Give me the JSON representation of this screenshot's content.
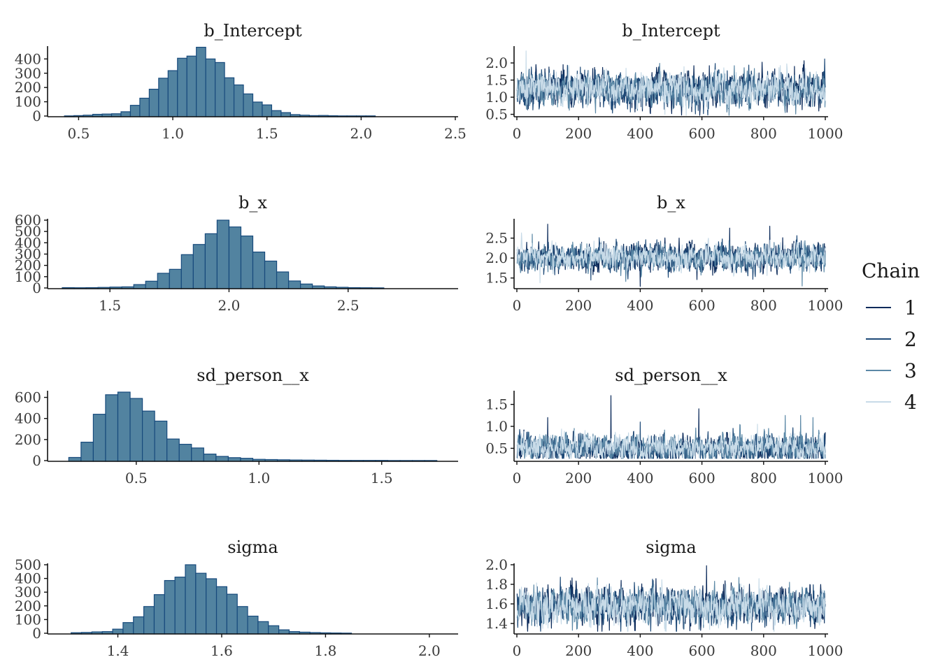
{
  "legend": {
    "title": "Chain",
    "items": [
      {
        "label": "1",
        "color": "#0b2a5a"
      },
      {
        "label": "2",
        "color": "#1e4a78"
      },
      {
        "label": "3",
        "color": "#5b88a6"
      },
      {
        "label": "4",
        "color": "#c8dbe8"
      }
    ]
  },
  "chart_data": [
    {
      "type": "bar",
      "title": "b_Intercept",
      "xlim": [
        0.35,
        2.5
      ],
      "ylim": [
        0,
        480
      ],
      "xticks": [
        "0.5",
        "1.0",
        "1.5",
        "2.0",
        "2.5"
      ],
      "yticks": [
        "0",
        "100",
        "200",
        "300",
        "400"
      ],
      "bins": [
        {
          "start": 0.425,
          "end": 0.475,
          "count": 1
        },
        {
          "start": 0.475,
          "end": 0.525,
          "count": 3
        },
        {
          "start": 0.525,
          "end": 0.575,
          "count": 6
        },
        {
          "start": 0.575,
          "end": 0.625,
          "count": 12
        },
        {
          "start": 0.625,
          "end": 0.675,
          "count": 14
        },
        {
          "start": 0.675,
          "end": 0.725,
          "count": 16
        },
        {
          "start": 0.725,
          "end": 0.775,
          "count": 30
        },
        {
          "start": 0.775,
          "end": 0.825,
          "count": 75
        },
        {
          "start": 0.825,
          "end": 0.875,
          "count": 125
        },
        {
          "start": 0.875,
          "end": 0.925,
          "count": 188
        },
        {
          "start": 0.925,
          "end": 0.975,
          "count": 265
        },
        {
          "start": 0.975,
          "end": 1.025,
          "count": 318
        },
        {
          "start": 1.025,
          "end": 1.075,
          "count": 405
        },
        {
          "start": 1.075,
          "end": 1.125,
          "count": 420
        },
        {
          "start": 1.125,
          "end": 1.175,
          "count": 482
        },
        {
          "start": 1.175,
          "end": 1.225,
          "count": 400
        },
        {
          "start": 1.225,
          "end": 1.275,
          "count": 375
        },
        {
          "start": 1.275,
          "end": 1.325,
          "count": 268
        },
        {
          "start": 1.325,
          "end": 1.375,
          "count": 218
        },
        {
          "start": 1.375,
          "end": 1.425,
          "count": 155
        },
        {
          "start": 1.425,
          "end": 1.475,
          "count": 98
        },
        {
          "start": 1.475,
          "end": 1.525,
          "count": 78
        },
        {
          "start": 1.525,
          "end": 1.575,
          "count": 38
        },
        {
          "start": 1.575,
          "end": 1.625,
          "count": 24
        },
        {
          "start": 1.625,
          "end": 1.675,
          "count": 10
        },
        {
          "start": 1.675,
          "end": 1.725,
          "count": 6
        },
        {
          "start": 1.725,
          "end": 1.775,
          "count": 3
        },
        {
          "start": 1.775,
          "end": 1.825,
          "count": 4
        },
        {
          "start": 1.825,
          "end": 1.875,
          "count": 2
        },
        {
          "start": 1.875,
          "end": 1.925,
          "count": 1
        },
        {
          "start": 1.925,
          "end": 1.975,
          "count": 1
        },
        {
          "start": 1.975,
          "end": 2.025,
          "count": 1
        },
        {
          "start": 2.025,
          "end": 2.075,
          "count": 1
        }
      ]
    },
    {
      "type": "line",
      "title": "b_Intercept",
      "xlim": [
        0,
        1000
      ],
      "ylim": [
        0.45,
        2.45
      ],
      "xticks": [
        "0",
        "200",
        "400",
        "600",
        "800",
        "1000"
      ],
      "yticks": [
        "0.5",
        "1.0",
        "1.5",
        "2.0"
      ],
      "series": [
        {
          "name": "1",
          "mean": 1.25,
          "sd": 0.27,
          "seed": 11,
          "spikes": [
            [
              150,
              1.95
            ],
            [
              900,
              1.9
            ]
          ]
        },
        {
          "name": "2",
          "mean": 1.22,
          "sd": 0.25,
          "seed": 23,
          "spikes": []
        },
        {
          "name": "3",
          "mean": 1.24,
          "sd": 0.24,
          "seed": 37,
          "spikes": []
        },
        {
          "name": "4",
          "mean": 1.24,
          "sd": 0.24,
          "seed": 51,
          "spikes": [
            [
              30,
              2.35
            ],
            [
              480,
              0.5
            ]
          ]
        }
      ]
    },
    {
      "type": "bar",
      "title": "b_x",
      "xlim": [
        1.25,
        2.95
      ],
      "ylim": [
        0,
        600
      ],
      "xticks": [
        "1.5",
        "2.0",
        "2.5"
      ],
      "yticks": [
        "0",
        "100",
        "200",
        "300",
        "400",
        "500",
        "600"
      ],
      "bins": [
        {
          "start": 1.3,
          "end": 1.35,
          "count": 3
        },
        {
          "start": 1.35,
          "end": 1.4,
          "count": 2
        },
        {
          "start": 1.4,
          "end": 1.45,
          "count": 3
        },
        {
          "start": 1.45,
          "end": 1.5,
          "count": 5
        },
        {
          "start": 1.5,
          "end": 1.55,
          "count": 8
        },
        {
          "start": 1.55,
          "end": 1.6,
          "count": 10
        },
        {
          "start": 1.6,
          "end": 1.65,
          "count": 30
        },
        {
          "start": 1.65,
          "end": 1.7,
          "count": 60
        },
        {
          "start": 1.7,
          "end": 1.75,
          "count": 130
        },
        {
          "start": 1.75,
          "end": 1.8,
          "count": 165
        },
        {
          "start": 1.8,
          "end": 1.85,
          "count": 295
        },
        {
          "start": 1.85,
          "end": 1.9,
          "count": 385
        },
        {
          "start": 1.9,
          "end": 1.95,
          "count": 480
        },
        {
          "start": 1.95,
          "end": 2.0,
          "count": 600
        },
        {
          "start": 2.0,
          "end": 2.05,
          "count": 540
        },
        {
          "start": 2.05,
          "end": 2.1,
          "count": 460
        },
        {
          "start": 2.1,
          "end": 2.15,
          "count": 318
        },
        {
          "start": 2.15,
          "end": 2.2,
          "count": 238
        },
        {
          "start": 2.2,
          "end": 2.25,
          "count": 142
        },
        {
          "start": 2.25,
          "end": 2.3,
          "count": 62
        },
        {
          "start": 2.3,
          "end": 2.35,
          "count": 35
        },
        {
          "start": 2.35,
          "end": 2.4,
          "count": 18
        },
        {
          "start": 2.4,
          "end": 2.45,
          "count": 10
        },
        {
          "start": 2.45,
          "end": 2.5,
          "count": 6
        },
        {
          "start": 2.5,
          "end": 2.55,
          "count": 3
        },
        {
          "start": 2.55,
          "end": 2.6,
          "count": 2
        },
        {
          "start": 2.6,
          "end": 2.65,
          "count": 1
        }
      ]
    },
    {
      "type": "line",
      "title": "b_x",
      "xlim": [
        0,
        1000
      ],
      "ylim": [
        1.25,
        2.95
      ],
      "xticks": [
        "0",
        "200",
        "400",
        "600",
        "800",
        "1000"
      ],
      "yticks": [
        "1.5",
        "2.0",
        "2.5"
      ],
      "series": [
        {
          "name": "1",
          "mean": 2.02,
          "sd": 0.17,
          "seed": 61,
          "spikes": [
            [
              100,
              2.85
            ],
            [
              690,
              2.75
            ],
            [
              820,
              2.8
            ]
          ]
        },
        {
          "name": "2",
          "mean": 2.02,
          "sd": 0.17,
          "seed": 73,
          "spikes": [
            [
              240,
              1.45
            ]
          ]
        },
        {
          "name": "3",
          "mean": 2.0,
          "sd": 0.16,
          "seed": 89,
          "spikes": [
            [
              50,
              2.6
            ],
            [
              925,
              1.3
            ]
          ]
        },
        {
          "name": "4",
          "mean": 2.02,
          "sd": 0.16,
          "seed": 97,
          "spikes": [
            [
              75,
              1.38
            ]
          ]
        }
      ]
    },
    {
      "type": "bar",
      "title": "sd_person__x",
      "xlim": [
        0.15,
        1.8
      ],
      "ylim": [
        0,
        650
      ],
      "xticks": [
        "0.5",
        "1.0",
        "1.5"
      ],
      "yticks": [
        "0",
        "200",
        "400",
        "600"
      ],
      "bins": [
        {
          "start": 0.225,
          "end": 0.275,
          "count": 30
        },
        {
          "start": 0.275,
          "end": 0.325,
          "count": 175
        },
        {
          "start": 0.325,
          "end": 0.375,
          "count": 440
        },
        {
          "start": 0.375,
          "end": 0.425,
          "count": 625
        },
        {
          "start": 0.425,
          "end": 0.475,
          "count": 650
        },
        {
          "start": 0.475,
          "end": 0.525,
          "count": 590
        },
        {
          "start": 0.525,
          "end": 0.575,
          "count": 470
        },
        {
          "start": 0.575,
          "end": 0.625,
          "count": 375
        },
        {
          "start": 0.625,
          "end": 0.675,
          "count": 205
        },
        {
          "start": 0.675,
          "end": 0.725,
          "count": 155
        },
        {
          "start": 0.725,
          "end": 0.775,
          "count": 120
        },
        {
          "start": 0.775,
          "end": 0.825,
          "count": 62
        },
        {
          "start": 0.825,
          "end": 0.875,
          "count": 40
        },
        {
          "start": 0.875,
          "end": 0.925,
          "count": 28
        },
        {
          "start": 0.925,
          "end": 0.975,
          "count": 22
        },
        {
          "start": 0.975,
          "end": 1.025,
          "count": 12
        },
        {
          "start": 1.025,
          "end": 1.075,
          "count": 10
        },
        {
          "start": 1.075,
          "end": 1.125,
          "count": 8
        },
        {
          "start": 1.125,
          "end": 1.175,
          "count": 6
        },
        {
          "start": 1.175,
          "end": 1.225,
          "count": 5
        },
        {
          "start": 1.225,
          "end": 1.275,
          "count": 4
        },
        {
          "start": 1.275,
          "end": 1.325,
          "count": 3
        },
        {
          "start": 1.325,
          "end": 1.375,
          "count": 2
        },
        {
          "start": 1.375,
          "end": 1.425,
          "count": 2
        },
        {
          "start": 1.425,
          "end": 1.475,
          "count": 2
        },
        {
          "start": 1.475,
          "end": 1.525,
          "count": 2
        },
        {
          "start": 1.525,
          "end": 1.575,
          "count": 1
        },
        {
          "start": 1.575,
          "end": 1.625,
          "count": 1
        },
        {
          "start": 1.625,
          "end": 1.675,
          "count": 1
        },
        {
          "start": 1.675,
          "end": 1.725,
          "count": 1
        }
      ]
    },
    {
      "type": "line",
      "title": "sd_person__x",
      "xlim": [
        0,
        1000
      ],
      "ylim": [
        0.22,
        1.78
      ],
      "xticks": [
        "0",
        "200",
        "400",
        "600",
        "800",
        "1000"
      ],
      "yticks": [
        "0.5",
        "1.0",
        "1.5"
      ],
      "series": [
        {
          "name": "1",
          "mean": 0.48,
          "sd": 0.15,
          "seed": 101,
          "spikes": [
            [
              305,
              1.7
            ],
            [
              590,
              1.4
            ],
            [
              100,
              1.2
            ]
          ]
        },
        {
          "name": "2",
          "mean": 0.5,
          "sd": 0.15,
          "seed": 113,
          "spikes": [
            [
              400,
              1.1
            ]
          ]
        },
        {
          "name": "3",
          "mean": 0.52,
          "sd": 0.15,
          "seed": 127,
          "spikes": [
            [
              870,
              1.25
            ],
            [
              920,
              1.25
            ],
            [
              960,
              1.2
            ]
          ]
        },
        {
          "name": "4",
          "mean": 0.52,
          "sd": 0.14,
          "seed": 139,
          "spikes": [
            [
              780,
              1.05
            ]
          ]
        }
      ]
    },
    {
      "type": "bar",
      "title": "sigma",
      "xlim": [
        1.27,
        2.05
      ],
      "ylim": [
        0,
        500
      ],
      "xticks": [
        "1.4",
        "1.6",
        "1.8",
        "2.0"
      ],
      "yticks": [
        "0",
        "100",
        "200",
        "300",
        "400",
        "500"
      ],
      "bins": [
        {
          "start": 1.31,
          "end": 1.33,
          "count": 4
        },
        {
          "start": 1.33,
          "end": 1.35,
          "count": 6
        },
        {
          "start": 1.35,
          "end": 1.37,
          "count": 10
        },
        {
          "start": 1.37,
          "end": 1.39,
          "count": 12
        },
        {
          "start": 1.39,
          "end": 1.41,
          "count": 30
        },
        {
          "start": 1.41,
          "end": 1.43,
          "count": 78
        },
        {
          "start": 1.43,
          "end": 1.45,
          "count": 120
        },
        {
          "start": 1.45,
          "end": 1.47,
          "count": 195
        },
        {
          "start": 1.47,
          "end": 1.49,
          "count": 282
        },
        {
          "start": 1.49,
          "end": 1.51,
          "count": 385
        },
        {
          "start": 1.51,
          "end": 1.53,
          "count": 410
        },
        {
          "start": 1.53,
          "end": 1.55,
          "count": 500
        },
        {
          "start": 1.55,
          "end": 1.57,
          "count": 438
        },
        {
          "start": 1.57,
          "end": 1.59,
          "count": 398
        },
        {
          "start": 1.59,
          "end": 1.61,
          "count": 340
        },
        {
          "start": 1.61,
          "end": 1.63,
          "count": 285
        },
        {
          "start": 1.63,
          "end": 1.65,
          "count": 195
        },
        {
          "start": 1.65,
          "end": 1.67,
          "count": 125
        },
        {
          "start": 1.67,
          "end": 1.69,
          "count": 85
        },
        {
          "start": 1.69,
          "end": 1.71,
          "count": 55
        },
        {
          "start": 1.71,
          "end": 1.73,
          "count": 25
        },
        {
          "start": 1.73,
          "end": 1.75,
          "count": 12
        },
        {
          "start": 1.75,
          "end": 1.77,
          "count": 8
        },
        {
          "start": 1.77,
          "end": 1.79,
          "count": 5
        },
        {
          "start": 1.79,
          "end": 1.81,
          "count": 3
        },
        {
          "start": 1.81,
          "end": 1.83,
          "count": 2
        },
        {
          "start": 1.83,
          "end": 1.85,
          "count": 1
        }
      ]
    },
    {
      "type": "line",
      "title": "sigma",
      "xlim": [
        0,
        1000
      ],
      "ylim": [
        1.3,
        2.0
      ],
      "xticks": [
        "0",
        "200",
        "400",
        "600",
        "800",
        "1000"
      ],
      "yticks": [
        "1.4",
        "1.6",
        "1.8",
        "2.0"
      ],
      "series": [
        {
          "name": "1",
          "mean": 1.58,
          "sd": 0.09,
          "seed": 151,
          "spikes": [
            [
              615,
              1.99
            ],
            [
              300,
              1.33
            ]
          ]
        },
        {
          "name": "2",
          "mean": 1.58,
          "sd": 0.09,
          "seed": 163,
          "spikes": []
        },
        {
          "name": "3",
          "mean": 1.58,
          "sd": 0.09,
          "seed": 179,
          "spikes": [
            [
              720,
              1.87
            ],
            [
              180,
              1.33
            ]
          ]
        },
        {
          "name": "4",
          "mean": 1.58,
          "sd": 0.09,
          "seed": 191,
          "spikes": []
        }
      ]
    }
  ]
}
